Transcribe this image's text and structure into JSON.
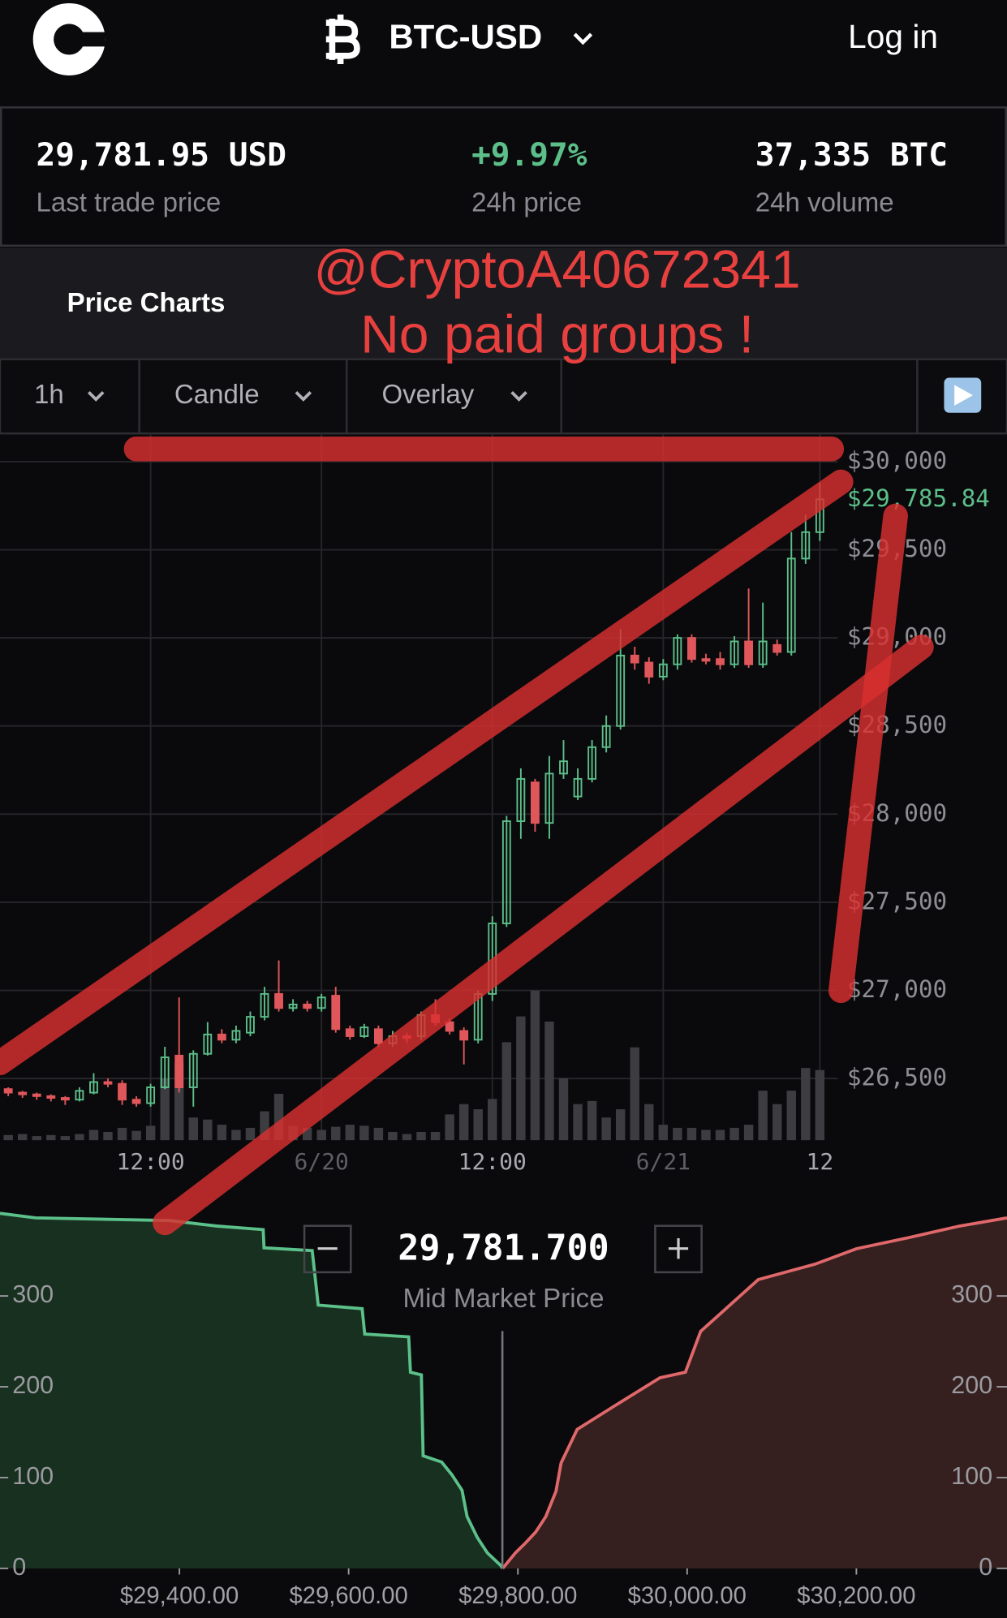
{
  "header": {
    "pair": "BTC-USD",
    "login": "Log in"
  },
  "stats": [
    {
      "value": "29,781.95 USD",
      "label": "Last trade price"
    },
    {
      "value": "+9.97%",
      "label": "24h price"
    },
    {
      "value": "37,335 BTC",
      "label": "24h volume"
    }
  ],
  "section_title": "Price Charts",
  "annotation": [
    "@CryptoA40672341",
    "No paid groups !"
  ],
  "toolbar": [
    "1h",
    "Candle",
    "Overlay"
  ],
  "mid_market": {
    "price": "29,781.700",
    "label": "Mid Market Price"
  },
  "chart_data": [
    {
      "type": "candlestick",
      "categories": [
        null,
        null,
        null,
        null,
        null,
        null,
        null,
        null,
        null,
        null,
        "12:00",
        null,
        null,
        null,
        null,
        null,
        null,
        null,
        null,
        null,
        null,
        null,
        "6/20",
        null,
        null,
        null,
        null,
        null,
        null,
        null,
        null,
        null,
        null,
        null,
        "12:00",
        null,
        null,
        null,
        null,
        null,
        null,
        null,
        null,
        null,
        null,
        null,
        "6/21",
        null,
        null,
        null,
        null,
        null,
        null,
        null,
        null,
        null,
        null,
        "12"
      ],
      "open": [
        26440,
        26420,
        26410,
        26400,
        26390,
        26380,
        26420,
        26480,
        26470,
        26380,
        26360,
        26450,
        26630,
        26450,
        26640,
        26750,
        26720,
        26760,
        26850,
        26980,
        26900,
        26920,
        26900,
        26970,
        26780,
        26740,
        26780,
        26700,
        26740,
        26740,
        26860,
        26820,
        26770,
        26720,
        26980,
        27380,
        27960,
        28180,
        27950,
        28230,
        28100,
        28200,
        28380,
        28500,
        28900,
        28860,
        28780,
        28850,
        29000,
        28880,
        28880,
        28850,
        28980,
        28850,
        28960,
        28920,
        29450,
        29600
      ],
      "high": [
        26450,
        26430,
        26420,
        26410,
        26400,
        26450,
        26530,
        26500,
        26490,
        26400,
        26470,
        26680,
        26960,
        26660,
        26820,
        26780,
        26800,
        26880,
        27020,
        27170,
        26950,
        26940,
        26980,
        27020,
        26800,
        26810,
        26800,
        26770,
        26760,
        26880,
        26950,
        26840,
        26790,
        27000,
        27420,
        27990,
        28260,
        28200,
        28330,
        28420,
        28260,
        28420,
        28560,
        29050,
        28950,
        28890,
        28880,
        29020,
        29020,
        28910,
        28920,
        29010,
        29280,
        29200,
        28990,
        29600,
        29700,
        29880
      ],
      "low": [
        26400,
        26390,
        26380,
        26370,
        26350,
        26370,
        26410,
        26450,
        26350,
        26340,
        26340,
        26440,
        26420,
        26340,
        26630,
        26700,
        26700,
        26740,
        26830,
        26880,
        26880,
        26880,
        26880,
        26760,
        26720,
        26730,
        26680,
        26680,
        26700,
        26720,
        26800,
        26750,
        26580,
        26700,
        26940,
        27360,
        27860,
        27900,
        27860,
        28200,
        28080,
        28180,
        28350,
        28480,
        28820,
        28740,
        28760,
        28820,
        28860,
        28850,
        28820,
        28830,
        28830,
        28830,
        28900,
        28900,
        29420,
        29550
      ],
      "close": [
        26420,
        26410,
        26400,
        26390,
        26380,
        26430,
        26480,
        26470,
        26380,
        26360,
        26450,
        26620,
        26450,
        26640,
        26750,
        26720,
        26770,
        26850,
        26980,
        26900,
        26920,
        26900,
        26960,
        26780,
        26740,
        26790,
        26700,
        26740,
        26730,
        26860,
        26820,
        26770,
        26720,
        26980,
        27380,
        27960,
        28200,
        27950,
        28230,
        28300,
        28200,
        28380,
        28500,
        28900,
        28860,
        28780,
        28850,
        29000,
        28880,
        28870,
        28850,
        28980,
        28850,
        28980,
        28920,
        29450,
        29600,
        29786
      ],
      "volume": [
        5,
        6,
        4,
        5,
        4,
        6,
        10,
        8,
        12,
        9,
        14,
        60,
        75,
        22,
        20,
        15,
        10,
        12,
        28,
        45,
        14,
        12,
        10,
        13,
        15,
        14,
        12,
        8,
        6,
        8,
        8,
        25,
        35,
        30,
        40,
        95,
        120,
        145,
        115,
        60,
        35,
        38,
        22,
        30,
        90,
        35,
        15,
        12,
        12,
        10,
        10,
        12,
        15,
        48,
        35,
        48,
        70,
        68
      ],
      "up_color": "#5cbf8a",
      "down_color": "#e0575b",
      "volume_color": "#3c3c41",
      "ylim": [
        26150,
        30160
      ],
      "yticks": [
        {
          "value": 26500,
          "label": "$26,500"
        },
        {
          "value": 27000,
          "label": "$27,000"
        },
        {
          "value": 27500,
          "label": "$27,500"
        },
        {
          "value": 28000,
          "label": "$28,000"
        },
        {
          "value": 28500,
          "label": "$28,500"
        },
        {
          "value": 29000,
          "label": "$29,000"
        },
        {
          "value": 29500,
          "label": "$29,500"
        },
        {
          "value": 30000,
          "label": "$30,000"
        }
      ],
      "last_price": {
        "value": 29785.84,
        "label": "$29,785.84"
      },
      "grid": true
    },
    {
      "type": "depth",
      "bids": {
        "color": "#5cc08a",
        "x": [
          29188,
          29230,
          29389,
          29444,
          29499,
          29500,
          29557,
          29564,
          29616,
          29619,
          29671,
          29673,
          29686,
          29688,
          29710,
          29722,
          29734,
          29740,
          29752,
          29764,
          29780,
          29782
        ],
        "values": [
          391,
          386,
          383,
          377,
          373,
          353,
          350,
          290,
          286,
          258,
          255,
          216,
          213,
          124,
          117,
          103,
          86,
          57,
          34,
          17,
          3,
          0
        ]
      },
      "asks": {
        "color": "#e0686b",
        "x": [
          29782,
          29797,
          29809,
          29821,
          29833,
          29845,
          29851,
          29870,
          29916,
          29968,
          29998,
          30016,
          30084,
          30151,
          30200,
          30261,
          30322,
          30378
        ],
        "values": [
          0,
          17,
          28,
          40,
          57,
          85,
          116,
          153,
          180,
          210,
          216,
          261,
          318,
          335,
          352,
          364,
          377,
          386
        ]
      },
      "mid_price": 29781.7,
      "xlim": [
        29188,
        30378
      ],
      "ylim": [
        0,
        392
      ],
      "xticks": [
        {
          "value": 29400,
          "label": "$29,400.00"
        },
        {
          "value": 29600,
          "label": "$29,600.00"
        },
        {
          "value": 29800,
          "label": "$29,800.00"
        },
        {
          "value": 30000,
          "label": "$30,000.00"
        },
        {
          "value": 30200,
          "label": "$30,200.00"
        }
      ],
      "yticks": [
        0,
        100,
        200,
        300
      ]
    }
  ]
}
